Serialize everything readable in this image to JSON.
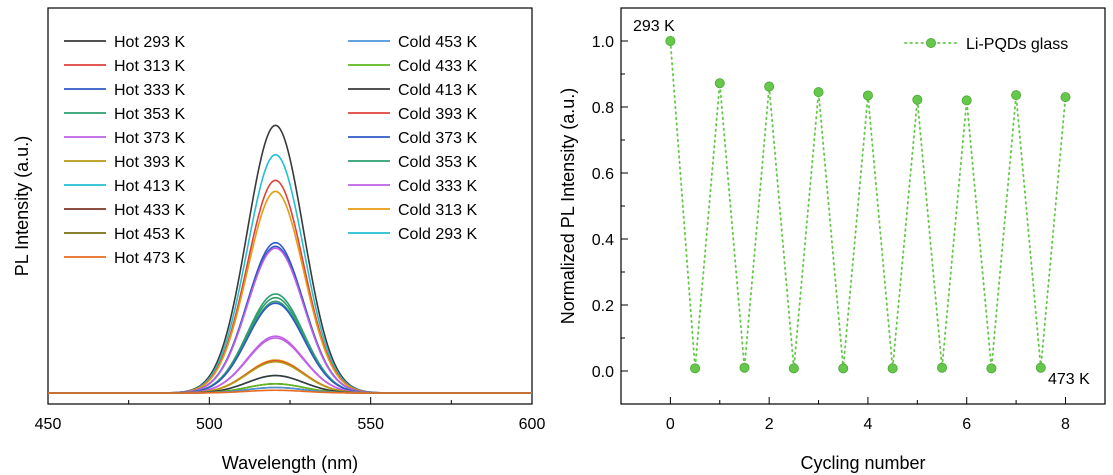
{
  "chart_data": [
    {
      "type": "line",
      "xlabel": "Wavelength (nm)",
      "ylabel": "PL Intensity (a.u.)",
      "xlim": [
        450,
        600
      ],
      "ylim": [
        -0.6,
        21.0
      ],
      "xticks": [
        450,
        500,
        550,
        600
      ],
      "xtick_labels": [
        "450",
        "500",
        "550",
        "600"
      ],
      "show_y_tick_labels": false,
      "grid": false,
      "legend_position": "top-left, two columns",
      "peak_center_nm": 520.5,
      "peak_fwhm_nm": 20.5,
      "series": [
        {
          "name": "Hot 293 K",
          "color": "#3a3a3a",
          "peak": 14.6
        },
        {
          "name": "Hot 313 K",
          "color": "#e0403c",
          "peak": 11.6
        },
        {
          "name": "Hot 333 K",
          "color": "#2f59c7",
          "peak": 8.2
        },
        {
          "name": "Hot 353 K",
          "color": "#2e9e6e",
          "peak": 5.2
        },
        {
          "name": "Hot 373 K",
          "color": "#c061e6",
          "peak": 3.0
        },
        {
          "name": "Hot 393 K",
          "color": "#b59a12",
          "peak": 1.7
        },
        {
          "name": "Hot 413 K",
          "color": "#23bfd3",
          "peak": 0.95
        },
        {
          "name": "Hot 433 K",
          "color": "#7b3526",
          "peak": 0.5
        },
        {
          "name": "Hot 453 K",
          "color": "#7a6d10",
          "peak": 0.3
        },
        {
          "name": "Hot 473 K",
          "color": "#e86a20",
          "peak": 0.15
        },
        {
          "name": "Cold 453 K",
          "color": "#4d93d9",
          "peak": 0.3
        },
        {
          "name": "Cold 433 K",
          "color": "#5cba1e",
          "peak": 0.5
        },
        {
          "name": "Cold 413 K",
          "color": "#3a3a3a",
          "peak": 0.95
        },
        {
          "name": "Cold 393 K",
          "color": "#e0403c",
          "peak": 1.75
        },
        {
          "name": "Cold 373 K",
          "color": "#2f59c7",
          "peak": 4.9
        },
        {
          "name": "Cold 353 K",
          "color": "#2e9e6e",
          "peak": 5.0
        },
        {
          "name": "Cold 333 K",
          "color": "#c061e6",
          "peak": 3.1
        },
        {
          "name": "Cold 313 K",
          "color": "#e89a10",
          "peak": 1.8
        },
        {
          "name": "Cold 293 K",
          "color": "#23bfd3",
          "peak": 13.0
        }
      ],
      "extra_curves": [
        {
          "color": "#e89a10",
          "peak": 11.0
        },
        {
          "color": "#2f59c7",
          "peak": 8.0
        },
        {
          "color": "#c061e6",
          "peak": 7.9
        },
        {
          "color": "#2e9e6e",
          "peak": 5.4
        }
      ]
    },
    {
      "type": "line",
      "xlabel": "Cycling number",
      "ylabel": "Normalized PL Intensity (a.u.)",
      "xlim": [
        -1.0,
        8.8
      ],
      "ylim": [
        -0.1,
        1.1
      ],
      "xticks": [
        0,
        2,
        4,
        6,
        8
      ],
      "xtick_labels": [
        "0",
        "2",
        "4",
        "6",
        "8"
      ],
      "yticks": [
        0.0,
        0.2,
        0.4,
        0.6,
        0.8,
        1.0
      ],
      "ytick_labels": [
        "0.0",
        "0.2",
        "0.4",
        "0.6",
        "0.8",
        "1.0"
      ],
      "grid": false,
      "legend_position": "top-right",
      "color": "#66c84a",
      "series": [
        {
          "name": "Li-PQDs glass",
          "x": [
            0,
            0.5,
            1,
            1.5,
            2,
            2.5,
            3,
            3.5,
            4,
            4.5,
            5,
            5.5,
            6,
            6.5,
            7,
            7.5,
            8
          ],
          "y": [
            1.0,
            0.008,
            0.872,
            0.01,
            0.862,
            0.008,
            0.845,
            0.008,
            0.835,
            0.008,
            0.822,
            0.01,
            0.82,
            0.008,
            0.836,
            0.01,
            0.83
          ]
        }
      ],
      "annotations": [
        "293 K",
        "473 K"
      ]
    }
  ]
}
